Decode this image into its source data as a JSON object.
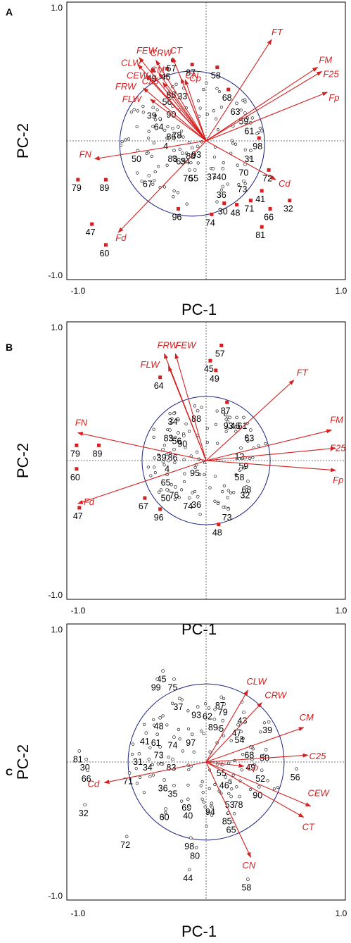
{
  "chart_data": [
    {
      "type": "scatter",
      "panel_label": "A",
      "xlabel": "PC-1",
      "ylabel": "PC-2",
      "xlim": [
        -1.0,
        1.0
      ],
      "ylim": [
        -1.0,
        1.0
      ],
      "xtick_labels": [
        "-1.0",
        "1.0"
      ],
      "ytick_labels": [
        "1.0",
        "-1.0"
      ],
      "loadings": [
        {
          "name": "FT",
          "x": 0.47,
          "y": 0.73
        },
        {
          "name": "FM",
          "x": 0.8,
          "y": 0.53
        },
        {
          "name": "F25",
          "x": 0.83,
          "y": 0.5
        },
        {
          "name": "Fp",
          "x": 0.87,
          "y": 0.35
        },
        {
          "name": "Cd",
          "x": 0.5,
          "y": -0.28
        },
        {
          "name": "Fd",
          "x": -0.63,
          "y": -0.66
        },
        {
          "name": "FN",
          "x": -0.8,
          "y": -0.13
        },
        {
          "name": "FEW",
          "x": -0.48,
          "y": 0.6
        },
        {
          "name": "CRW",
          "x": -0.36,
          "y": 0.58
        },
        {
          "name": "CT",
          "x": -0.24,
          "y": 0.6
        },
        {
          "name": "CLW",
          "x": -0.49,
          "y": 0.55
        },
        {
          "name": "CM",
          "x": -0.34,
          "y": 0.49
        },
        {
          "name": "CEW",
          "x": -0.43,
          "y": 0.47
        },
        {
          "name": "CN",
          "x": -0.18,
          "y": 0.45
        },
        {
          "name": "Cp",
          "x": -0.15,
          "y": 0.44
        },
        {
          "name": "C25",
          "x": -0.31,
          "y": 0.42
        },
        {
          "name": "FRW",
          "x": -0.45,
          "y": 0.38
        },
        {
          "name": "FLW",
          "x": -0.4,
          "y": 0.3
        }
      ],
      "labeled_points": [
        {
          "label": "79",
          "x": -0.92,
          "y": -0.28
        },
        {
          "label": "89",
          "x": -0.72,
          "y": -0.28
        },
        {
          "label": "47",
          "x": -0.82,
          "y": -0.6
        },
        {
          "label": "60",
          "x": -0.72,
          "y": -0.75
        },
        {
          "label": "67",
          "x": -0.41,
          "y": -0.25
        },
        {
          "label": "96",
          "x": -0.2,
          "y": -0.49
        },
        {
          "label": "50",
          "x": -0.49,
          "y": -0.07
        },
        {
          "label": "83",
          "x": -0.23,
          "y": -0.07
        },
        {
          "label": "65",
          "x": -0.17,
          "y": -0.09
        },
        {
          "label": "34",
          "x": -0.14,
          "y": -0.09
        },
        {
          "label": "80",
          "x": -0.1,
          "y": -0.05
        },
        {
          "label": "93",
          "x": -0.06,
          "y": -0.04
        },
        {
          "label": "76",
          "x": -0.12,
          "y": -0.21
        },
        {
          "label": "55",
          "x": -0.08,
          "y": -0.21
        },
        {
          "label": "4",
          "x": -0.28,
          "y": 0.02
        },
        {
          "label": "86",
          "x": -0.24,
          "y": 0.09
        },
        {
          "label": "78",
          "x": -0.2,
          "y": 0.1
        },
        {
          "label": "90",
          "x": -0.24,
          "y": 0.25
        },
        {
          "label": "39",
          "x": -0.38,
          "y": 0.24
        },
        {
          "label": "64",
          "x": -0.33,
          "y": 0.16
        },
        {
          "label": "56",
          "x": -0.27,
          "y": 0.34
        },
        {
          "label": "88",
          "x": -0.24,
          "y": 0.39
        },
        {
          "label": "33",
          "x": -0.16,
          "y": 0.38
        },
        {
          "label": "45",
          "x": -0.28,
          "y": 0.52
        },
        {
          "label": "57",
          "x": -0.24,
          "y": 0.58
        },
        {
          "label": "87",
          "x": -0.1,
          "y": 0.55
        },
        {
          "label": "58",
          "x": 0.08,
          "y": 0.53
        },
        {
          "label": "49",
          "x": -0.38,
          "y": 0.51
        },
        {
          "label": "68",
          "x": 0.16,
          "y": 0.37
        },
        {
          "label": "63",
          "x": 0.22,
          "y": 0.27
        },
        {
          "label": "59",
          "x": 0.28,
          "y": 0.2
        },
        {
          "label": "61",
          "x": 0.32,
          "y": 0.13
        },
        {
          "label": "98",
          "x": 0.38,
          "y": 0.02
        },
        {
          "label": "31",
          "x": 0.32,
          "y": -0.07
        },
        {
          "label": "70",
          "x": 0.28,
          "y": -0.17
        },
        {
          "label": "72",
          "x": 0.45,
          "y": -0.21
        },
        {
          "label": "37",
          "x": 0.05,
          "y": -0.2
        },
        {
          "label": "40",
          "x": 0.12,
          "y": -0.2
        },
        {
          "label": "36",
          "x": 0.12,
          "y": -0.33
        },
        {
          "label": "73",
          "x": 0.27,
          "y": -0.29
        },
        {
          "label": "41",
          "x": 0.4,
          "y": -0.36
        },
        {
          "label": "71",
          "x": 0.32,
          "y": -0.43
        },
        {
          "label": "30",
          "x": 0.13,
          "y": -0.45
        },
        {
          "label": "48",
          "x": 0.22,
          "y": -0.46
        },
        {
          "label": "74",
          "x": 0.04,
          "y": -0.53
        },
        {
          "label": "66",
          "x": 0.46,
          "y": -0.49
        },
        {
          "label": "32",
          "x": 0.6,
          "y": -0.43
        },
        {
          "label": "81",
          "x": 0.4,
          "y": -0.62
        }
      ]
    },
    {
      "type": "scatter",
      "panel_label": "B",
      "xlabel": "PC-1",
      "ylabel": "PC-2",
      "xlim": [
        -1.0,
        1.0
      ],
      "ylim": [
        -1.0,
        1.0
      ],
      "xtick_labels": [
        "-1.0",
        "1.0"
      ],
      "ytick_labels": [
        "1.0",
        "-1.0"
      ],
      "loadings": [
        {
          "name": "FT",
          "x": 0.63,
          "y": 0.58
        },
        {
          "name": "FM",
          "x": 0.9,
          "y": 0.22
        },
        {
          "name": "F25",
          "x": 0.93,
          "y": 0.09
        },
        {
          "name": "Fp",
          "x": 0.93,
          "y": -0.07
        },
        {
          "name": "FN",
          "x": -0.92,
          "y": 0.2
        },
        {
          "name": "Fd",
          "x": -0.92,
          "y": -0.31
        },
        {
          "name": "FRW",
          "x": -0.3,
          "y": 0.77
        },
        {
          "name": "FEW",
          "x": -0.22,
          "y": 0.77
        },
        {
          "name": "FLW",
          "x": -0.27,
          "y": 0.68
        }
      ],
      "labeled_points": [
        {
          "label": "57",
          "x": 0.11,
          "y": 0.83
        },
        {
          "label": "45",
          "x": 0.03,
          "y": 0.72
        },
        {
          "label": "49",
          "x": 0.07,
          "y": 0.65
        },
        {
          "label": "64",
          "x": -0.33,
          "y": 0.6
        },
        {
          "label": "88",
          "x": -0.06,
          "y": 0.36
        },
        {
          "label": "87",
          "x": 0.15,
          "y": 0.42
        },
        {
          "label": "34",
          "x": -0.23,
          "y": 0.34
        },
        {
          "label": "83",
          "x": -0.26,
          "y": 0.22
        },
        {
          "label": "56",
          "x": -0.2,
          "y": 0.2
        },
        {
          "label": "90",
          "x": -0.16,
          "y": 0.18
        },
        {
          "label": "39",
          "x": -0.31,
          "y": 0.08
        },
        {
          "label": "86",
          "x": -0.23,
          "y": 0.08
        },
        {
          "label": "93",
          "x": 0.17,
          "y": 0.31
        },
        {
          "label": "46",
          "x": 0.22,
          "y": 0.31
        },
        {
          "label": "61",
          "x": 0.27,
          "y": 0.31
        },
        {
          "label": "63",
          "x": 0.32,
          "y": 0.22
        },
        {
          "label": "12",
          "x": 0.25,
          "y": 0.09
        },
        {
          "label": "59",
          "x": 0.28,
          "y": 0.02
        },
        {
          "label": "58",
          "x": 0.25,
          "y": -0.06
        },
        {
          "label": "68",
          "x": 0.3,
          "y": -0.15
        },
        {
          "label": "32",
          "x": 0.29,
          "y": -0.19
        },
        {
          "label": "4",
          "x": -0.27,
          "y": 0.0
        },
        {
          "label": "95",
          "x": -0.07,
          "y": -0.03
        },
        {
          "label": "65",
          "x": -0.28,
          "y": -0.1
        },
        {
          "label": "76",
          "x": -0.22,
          "y": -0.19
        },
        {
          "label": "50",
          "x": -0.28,
          "y": -0.21
        },
        {
          "label": "74",
          "x": -0.12,
          "y": -0.27
        },
        {
          "label": "36",
          "x": -0.06,
          "y": -0.26
        },
        {
          "label": "67",
          "x": -0.44,
          "y": -0.27
        },
        {
          "label": "96",
          "x": -0.33,
          "y": -0.35
        },
        {
          "label": "73",
          "x": 0.16,
          "y": -0.35
        },
        {
          "label": "48",
          "x": 0.09,
          "y": -0.46
        },
        {
          "label": "79",
          "x": -0.93,
          "y": 0.11
        },
        {
          "label": "89",
          "x": -0.77,
          "y": 0.11
        },
        {
          "label": "60",
          "x": -0.93,
          "y": -0.06
        },
        {
          "label": "47",
          "x": -0.91,
          "y": -0.34
        }
      ]
    },
    {
      "type": "scatter",
      "panel_label": "C",
      "xlabel": "PC-1",
      "ylabel": "PC-2",
      "xlim": [
        -1.0,
        1.0
      ],
      "ylim": [
        -1.0,
        1.0
      ],
      "xtick_labels": [
        "-1.0",
        "1.0"
      ],
      "ytick_labels": [
        "1.0",
        "-1.0"
      ],
      "loadings": [
        {
          "name": "CLW",
          "x": 0.3,
          "y": 0.52
        },
        {
          "name": "CRW",
          "x": 0.4,
          "y": 0.43
        },
        {
          "name": "CM",
          "x": 0.7,
          "y": 0.25
        },
        {
          "name": "C25",
          "x": 0.73,
          "y": 0.05
        },
        {
          "name": "Cp",
          "x": 0.27,
          "y": -0.03
        },
        {
          "name": "CEW",
          "x": 0.75,
          "y": -0.32
        },
        {
          "name": "CT",
          "x": 0.7,
          "y": -0.4
        },
        {
          "name": "CN",
          "x": 0.32,
          "y": -0.69
        },
        {
          "name": "Cd",
          "x": -0.73,
          "y": -0.15
        }
      ],
      "labeled_points": [
        {
          "label": "45",
          "x": -0.31,
          "y": 0.66
        },
        {
          "label": "99",
          "x": -0.35,
          "y": 0.6
        },
        {
          "label": "75",
          "x": -0.23,
          "y": 0.6
        },
        {
          "label": "37",
          "x": -0.19,
          "y": 0.46
        },
        {
          "label": "48",
          "x": -0.33,
          "y": 0.32
        },
        {
          "label": "41",
          "x": -0.43,
          "y": 0.21
        },
        {
          "label": "61",
          "x": -0.35,
          "y": 0.2
        },
        {
          "label": "74",
          "x": -0.23,
          "y": 0.18
        },
        {
          "label": "97",
          "x": -0.1,
          "y": 0.2
        },
        {
          "label": "73",
          "x": -0.33,
          "y": 0.11
        },
        {
          "label": "31",
          "x": -0.48,
          "y": 0.06
        },
        {
          "label": "34",
          "x": -0.41,
          "y": 0.02
        },
        {
          "label": "83",
          "x": -0.24,
          "y": 0.02
        },
        {
          "label": "81",
          "x": -0.91,
          "y": 0.08
        },
        {
          "label": "30",
          "x": -0.86,
          "y": 0.02
        },
        {
          "label": "66",
          "x": -0.85,
          "y": -0.06
        },
        {
          "label": "71",
          "x": -0.55,
          "y": -0.08
        },
        {
          "label": "36",
          "x": -0.3,
          "y": -0.13
        },
        {
          "label": "35",
          "x": -0.23,
          "y": -0.17
        },
        {
          "label": "60",
          "x": -0.29,
          "y": -0.34
        },
        {
          "label": "69",
          "x": -0.13,
          "y": -0.27
        },
        {
          "label": "40",
          "x": -0.12,
          "y": -0.33
        },
        {
          "label": "94",
          "x": 0.04,
          "y": -0.3
        },
        {
          "label": "32",
          "x": -0.87,
          "y": -0.31
        },
        {
          "label": "72",
          "x": -0.57,
          "y": -0.54
        },
        {
          "label": "98",
          "x": -0.11,
          "y": -0.55
        },
        {
          "label": "80",
          "x": -0.07,
          "y": -0.62
        },
        {
          "label": "44",
          "x": -0.12,
          "y": -0.78
        },
        {
          "label": "93",
          "x": -0.06,
          "y": 0.4
        },
        {
          "label": "87",
          "x": 0.11,
          "y": 0.47
        },
        {
          "label": "62",
          "x": 0.02,
          "y": 0.39
        },
        {
          "label": "79",
          "x": 0.13,
          "y": 0.42
        },
        {
          "label": "89",
          "x": 0.06,
          "y": 0.31
        },
        {
          "label": "5",
          "x": 0.12,
          "y": 0.3
        },
        {
          "label": "47",
          "x": 0.23,
          "y": 0.27
        },
        {
          "label": "43",
          "x": 0.27,
          "y": 0.36
        },
        {
          "label": "54",
          "x": 0.25,
          "y": 0.22
        },
        {
          "label": "39",
          "x": 0.45,
          "y": 0.29
        },
        {
          "label": "68",
          "x": 0.32,
          "y": 0.11
        },
        {
          "label": "50",
          "x": 0.43,
          "y": 0.09
        },
        {
          "label": "49",
          "x": 0.33,
          "y": 0.02
        },
        {
          "label": "55",
          "x": 0.12,
          "y": -0.02
        },
        {
          "label": "52",
          "x": 0.4,
          "y": -0.06
        },
        {
          "label": "56",
          "x": 0.65,
          "y": -0.05
        },
        {
          "label": "90",
          "x": 0.38,
          "y": -0.18
        },
        {
          "label": "46",
          "x": 0.14,
          "y": -0.11
        },
        {
          "label": "53",
          "x": 0.18,
          "y": -0.25
        },
        {
          "label": "85",
          "x": 0.16,
          "y": -0.37
        },
        {
          "label": "78",
          "x": 0.24,
          "y": -0.25
        },
        {
          "label": "65",
          "x": 0.19,
          "y": -0.43
        },
        {
          "label": "58",
          "x": 0.3,
          "y": -0.85
        }
      ]
    }
  ]
}
